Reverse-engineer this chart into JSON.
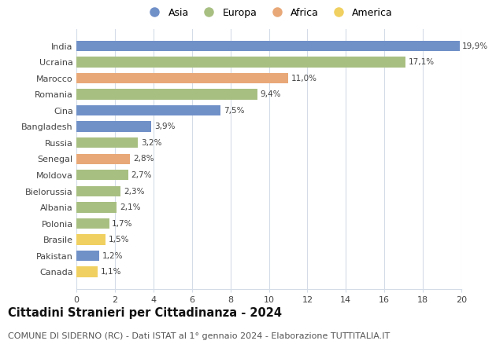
{
  "countries": [
    "India",
    "Ucraina",
    "Marocco",
    "Romania",
    "Cina",
    "Bangladesh",
    "Russia",
    "Senegal",
    "Moldova",
    "Bielorussia",
    "Albania",
    "Polonia",
    "Brasile",
    "Pakistan",
    "Canada"
  ],
  "values": [
    19.9,
    17.1,
    11.0,
    9.4,
    7.5,
    3.9,
    3.2,
    2.8,
    2.7,
    2.3,
    2.1,
    1.7,
    1.5,
    1.2,
    1.1
  ],
  "labels": [
    "19,9%",
    "17,1%",
    "11,0%",
    "9,4%",
    "7,5%",
    "3,9%",
    "3,2%",
    "2,8%",
    "2,7%",
    "2,3%",
    "2,1%",
    "1,7%",
    "1,5%",
    "1,2%",
    "1,1%"
  ],
  "continents": [
    "Asia",
    "Europa",
    "Africa",
    "Europa",
    "Asia",
    "Asia",
    "Europa",
    "Africa",
    "Europa",
    "Europa",
    "Europa",
    "Europa",
    "America",
    "Asia",
    "America"
  ],
  "continent_colors": {
    "Asia": "#7090c8",
    "Europa": "#a8bf82",
    "Africa": "#e8a878",
    "America": "#f0d060"
  },
  "legend_order": [
    "Asia",
    "Europa",
    "Africa",
    "America"
  ],
  "title": "Cittadini Stranieri per Cittadinanza - 2024",
  "subtitle": "COMUNE DI SIDERNO (RC) - Dati ISTAT al 1° gennaio 2024 - Elaborazione TUTTITALIA.IT",
  "xlim": [
    0,
    20
  ],
  "xticks": [
    0,
    2,
    4,
    6,
    8,
    10,
    12,
    14,
    16,
    18,
    20
  ],
  "background_color": "#ffffff",
  "grid_color": "#d4dce8",
  "bar_height": 0.65,
  "title_fontsize": 10.5,
  "subtitle_fontsize": 8,
  "label_fontsize": 7.5,
  "tick_fontsize": 8,
  "legend_fontsize": 9
}
